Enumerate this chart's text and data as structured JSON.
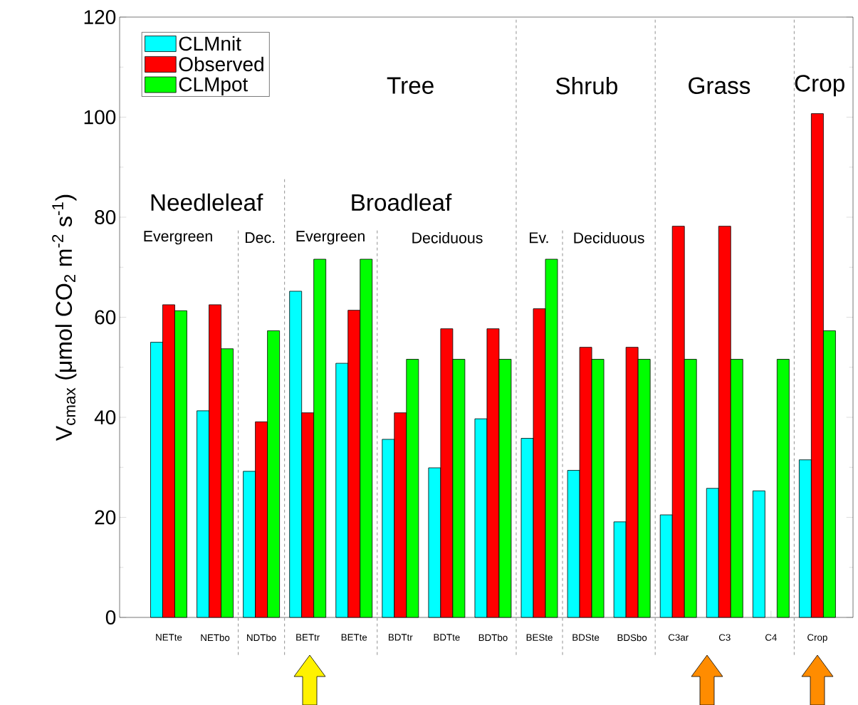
{
  "chart_data": {
    "type": "bar",
    "ylabel": "V$_{cmax}$ (μmol CO$_{2}$ m$^{-2}$ s$^{-1}$)",
    "categories": [
      "NETte",
      "NETbo",
      "NDTbo",
      "BETtr",
      "BETte",
      "BDTtr",
      "BDTte",
      "BDTbo",
      "BESte",
      "BDSte",
      "BDSbo",
      "C3ar",
      "C3",
      "C4",
      "Crop"
    ],
    "series": [
      {
        "name": "CLMnit",
        "color": "#00ffff",
        "values": [
          55.0,
          41.3,
          29.2,
          65.2,
          50.8,
          35.6,
          29.9,
          39.7,
          35.8,
          29.4,
          19.1,
          20.5,
          25.8,
          25.3,
          31.5
        ]
      },
      {
        "name": "Observed",
        "color": "#ff0000",
        "values": [
          62.5,
          62.5,
          39.1,
          40.9,
          61.4,
          40.9,
          57.7,
          57.7,
          61.7,
          54.0,
          54.0,
          78.2,
          78.2,
          null,
          100.7
        ]
      },
      {
        "name": "CLMpot",
        "color": "#00ff00",
        "values": [
          61.3,
          53.7,
          57.3,
          71.6,
          71.6,
          51.6,
          51.6,
          51.6,
          71.6,
          51.6,
          51.6,
          51.6,
          51.6,
          51.6,
          57.3
        ]
      }
    ],
    "ylim": [
      0,
      120
    ],
    "yticks": [
      0,
      20,
      40,
      60,
      80,
      100,
      120
    ],
    "legend": "top left",
    "annotations": [
      "Tree",
      "Shrub",
      "Grass",
      "Crop",
      "Needleleaf",
      "Broadleaf",
      "Evergreen",
      "Dec.",
      "Evergreen",
      "Deciduous",
      "Ev.",
      "Deciduous"
    ]
  }
}
